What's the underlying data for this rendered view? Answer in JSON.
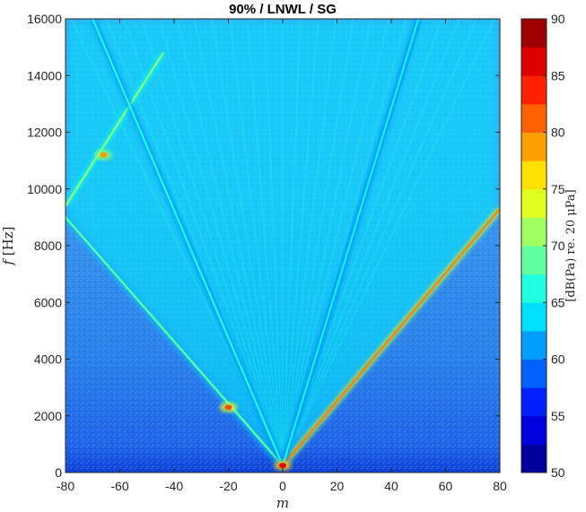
{
  "chart_data": {
    "type": "heatmap",
    "title": "90% / LNWL / SG",
    "xlabel": "m",
    "ylabel_symbol": "f",
    "ylabel_unit": "[Hz]",
    "xlim": [
      -80,
      80
    ],
    "ylim": [
      0,
      16000
    ],
    "x_ticks": [
      -80,
      -60,
      -40,
      -20,
      0,
      20,
      40,
      60,
      80
    ],
    "y_ticks": [
      0,
      2000,
      4000,
      6000,
      8000,
      10000,
      12000,
      14000,
      16000
    ],
    "colorbar": {
      "label": "[dB(Pa) re. 20 μPa]",
      "range": [
        50,
        90
      ],
      "ticks": [
        50,
        55,
        60,
        65,
        70,
        75,
        80,
        85,
        90
      ],
      "levels": 16,
      "colormap": "jet"
    },
    "background_level_db": 61,
    "ridges": [
      {
        "name": "ridge-main-right",
        "points": [
          [
            0,
            250
          ],
          [
            80,
            9300
          ]
        ],
        "level_db": 80
      },
      {
        "name": "ridge-main-left",
        "points": [
          [
            0,
            250
          ],
          [
            -80,
            9000
          ]
        ],
        "level_db": 69
      },
      {
        "name": "ridge-aliased-left",
        "points": [
          [
            -80,
            9400
          ],
          [
            -44,
            14800
          ]
        ],
        "level_db": 71
      },
      {
        "name": "ridge-fan-left-inner",
        "points": [
          [
            0,
            250
          ],
          [
            -70,
            16000
          ]
        ],
        "level_db": 66
      },
      {
        "name": "ridge-fan-right-inner",
        "points": [
          [
            0,
            250
          ],
          [
            50,
            16000
          ]
        ],
        "level_db": 65
      }
    ],
    "hotspots": [
      {
        "name": "hotspot-left-bend",
        "m": -20,
        "f": 2300,
        "level_db": 82
      },
      {
        "name": "hotspot-left-upper",
        "m": -66,
        "f": 11200,
        "level_db": 79
      },
      {
        "name": "hotspot-center-base",
        "m": 0,
        "f": 250,
        "level_db": 85
      }
    ]
  }
}
